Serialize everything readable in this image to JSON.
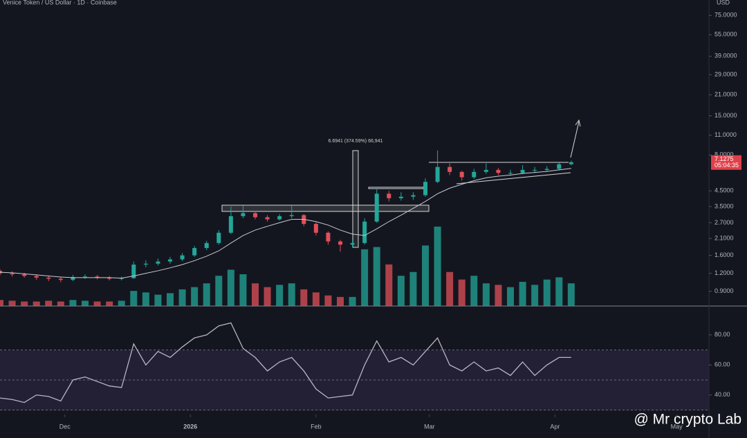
{
  "chart_data": {
    "type": "candlestick",
    "title": "Venice Token / US Dollar · 1D · Coinbase",
    "currency": "USD",
    "x": [
      0,
      3,
      6,
      9,
      12,
      15,
      18,
      21,
      24,
      27,
      30,
      33,
      36,
      39,
      42,
      45,
      48,
      51,
      54,
      57,
      60,
      63,
      66,
      69,
      72,
      75,
      78,
      81,
      84,
      87,
      90,
      93,
      96,
      99,
      102,
      105,
      108,
      111,
      114,
      117,
      120,
      123,
      126,
      129,
      132,
      135,
      138,
      141
    ],
    "xlim": [
      0,
      175
    ],
    "xticks": [
      {
        "value": 16,
        "label": "Dec"
      },
      {
        "value": 47,
        "label": "2026"
      },
      {
        "value": 78,
        "label": "Feb"
      },
      {
        "value": 106,
        "label": "Mar"
      },
      {
        "value": 137,
        "label": "Apr"
      },
      {
        "value": 167,
        "label": "May"
      }
    ],
    "open": [
      1.25,
      1.2,
      1.18,
      1.15,
      1.12,
      1.1,
      1.08,
      1.13,
      1.14,
      1.12,
      1.1,
      1.11,
      1.38,
      1.4,
      1.45,
      1.5,
      1.6,
      1.8,
      1.95,
      2.3,
      3.0,
      3.15,
      2.95,
      2.85,
      3.0,
      3.05,
      2.65,
      2.3,
      2.0,
      1.9,
      1.95,
      2.75,
      4.3,
      4.0,
      4.1,
      4.2,
      5.2,
      6.6,
      6.1,
      5.6,
      6.1,
      6.3,
      6.0,
      6.0,
      6.3,
      6.3,
      6.4,
      6.9
    ],
    "high": [
      1.28,
      1.24,
      1.21,
      1.18,
      1.16,
      1.14,
      1.17,
      1.18,
      1.17,
      1.15,
      1.14,
      1.45,
      1.48,
      1.52,
      1.56,
      1.66,
      1.86,
      2.02,
      2.4,
      3.5,
      3.55,
      3.25,
      3.05,
      3.1,
      3.55,
      3.1,
      2.72,
      2.35,
      2.05,
      2.05,
      2.9,
      4.6,
      4.5,
      4.4,
      4.4,
      5.5,
      8.6,
      7.0,
      6.2,
      6.4,
      7.0,
      6.5,
      6.3,
      6.8,
      6.6,
      6.7,
      7.1,
      7.3
    ],
    "low": [
      1.16,
      1.14,
      1.12,
      1.08,
      1.06,
      1.04,
      1.06,
      1.1,
      1.09,
      1.07,
      1.07,
      1.1,
      1.32,
      1.36,
      1.4,
      1.46,
      1.56,
      1.74,
      1.9,
      2.25,
      2.9,
      2.85,
      2.75,
      2.8,
      2.9,
      2.55,
      2.2,
      1.9,
      1.7,
      1.82,
      1.9,
      2.7,
      3.8,
      3.85,
      3.9,
      4.1,
      5.1,
      5.8,
      5.3,
      5.45,
      5.9,
      5.8,
      5.75,
      5.9,
      6.0,
      6.1,
      6.25,
      6.8
    ],
    "close": [
      1.2,
      1.18,
      1.15,
      1.12,
      1.1,
      1.08,
      1.13,
      1.14,
      1.12,
      1.1,
      1.11,
      1.38,
      1.4,
      1.45,
      1.5,
      1.6,
      1.8,
      1.95,
      2.3,
      3.0,
      3.15,
      2.95,
      2.85,
      3.0,
      3.05,
      2.65,
      2.3,
      2.0,
      1.9,
      1.95,
      2.75,
      4.3,
      4.0,
      4.1,
      4.2,
      5.2,
      6.6,
      6.1,
      5.6,
      6.1,
      6.3,
      6.0,
      6.0,
      6.3,
      6.3,
      6.4,
      6.9,
      7.1275
    ],
    "volume": [
      8,
      7,
      6,
      6,
      7,
      6,
      8,
      7,
      6,
      6,
      7,
      20,
      18,
      15,
      17,
      22,
      25,
      30,
      40,
      48,
      42,
      30,
      25,
      28,
      30,
      22,
      18,
      14,
      12,
      12,
      75,
      78,
      55,
      40,
      45,
      80,
      105,
      45,
      35,
      40,
      30,
      28,
      25,
      32,
      28,
      35,
      38,
      30
    ],
    "ma": [
      1.22,
      1.21,
      1.19,
      1.17,
      1.15,
      1.13,
      1.12,
      1.12,
      1.12,
      1.12,
      1.11,
      1.15,
      1.2,
      1.25,
      1.31,
      1.38,
      1.47,
      1.58,
      1.72,
      1.95,
      2.2,
      2.4,
      2.55,
      2.7,
      2.85,
      2.85,
      2.75,
      2.6,
      2.4,
      2.25,
      2.2,
      2.45,
      2.75,
      3.05,
      3.4,
      3.8,
      4.3,
      4.7,
      5.0,
      5.3,
      5.55,
      5.7,
      5.8,
      5.95,
      6.05,
      6.15,
      6.3,
      6.45
    ],
    "log_scale": true,
    "ylim": [
      0.71,
      96
    ],
    "yticks": [
      {
        "value": 75,
        "label": "75.0000"
      },
      {
        "value": 55,
        "label": "55.0000"
      },
      {
        "value": 39,
        "label": "39.0000"
      },
      {
        "value": 29,
        "label": "29.0000"
      },
      {
        "value": 21,
        "label": "21.0000"
      },
      {
        "value": 15,
        "label": "15.0000"
      },
      {
        "value": 11,
        "label": "11.0000"
      },
      {
        "value": 8,
        "label": "8.0000"
      },
      {
        "value": 4.5,
        "label": "4.5000"
      },
      {
        "value": 3.5,
        "label": "3.5000"
      },
      {
        "value": 2.7,
        "label": "2.7000"
      },
      {
        "value": 2.1,
        "label": "2.1000"
      },
      {
        "value": 1.6,
        "label": "1.6000"
      },
      {
        "value": 1.2,
        "label": "1.2000"
      },
      {
        "value": 0.9,
        "label": "0.9000"
      }
    ],
    "up_color": "#22a79a",
    "down_color": "#e0505a",
    "last_price": 7.1275,
    "countdown": "05:04:35",
    "annotation": "6.6941 (374.59%) 66,941",
    "rsi": {
      "values": [
        38,
        37,
        35,
        40,
        39,
        36,
        50,
        52,
        49,
        46,
        45,
        74,
        60,
        69,
        65,
        72,
        78,
        80,
        86,
        88,
        71,
        65,
        56,
        62,
        65,
        56,
        44,
        38,
        39,
        40,
        60,
        76,
        62,
        65,
        60,
        69,
        78,
        60,
        56,
        62,
        56,
        58,
        53,
        62,
        53,
        60,
        65,
        65
      ],
      "ylim": [
        27,
        96
      ],
      "yticks": [
        {
          "value": 80,
          "label": "80.00"
        },
        {
          "value": 60,
          "label": "60.00"
        },
        {
          "value": 40,
          "label": "40.00"
        }
      ],
      "levels": [
        70,
        50,
        30
      ],
      "color": "#b9b6c8"
    },
    "watermark": "@ Mr crypto Lab"
  }
}
